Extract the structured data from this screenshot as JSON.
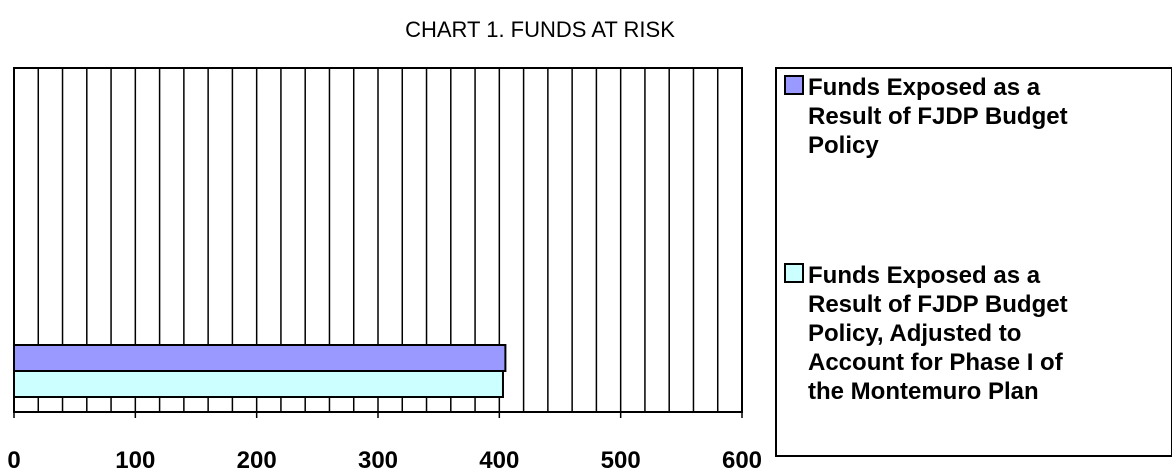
{
  "chart_data": {
    "type": "bar",
    "orientation": "horizontal",
    "title": "CHART 1. FUNDS AT RISK",
    "xlabel": "",
    "ylabel": "",
    "xlim": [
      0,
      600
    ],
    "x_ticks": [
      "0",
      "100",
      "200",
      "300",
      "400",
      "500",
      "600"
    ],
    "grid": "vertical",
    "legend_position": "right",
    "series": [
      {
        "name": "Funds Exposed as a Result of FJDP Budget Policy",
        "value": 405,
        "color": "#9999ff",
        "legend_lines": [
          "Funds Exposed as a",
          "Result of FJDP Budget",
          "Policy"
        ]
      },
      {
        "name": "Funds Exposed as a Result of FJDP Budget Policy, Adjusted to Account for Phase I of the Montemuro Plan",
        "value": 403,
        "color": "#ccffff",
        "legend_lines": [
          "Funds Exposed as a",
          "Result of FJDP Budget",
          "Policy, Adjusted to",
          "Account for Phase I of",
          "the Montemuro Plan"
        ]
      }
    ]
  }
}
